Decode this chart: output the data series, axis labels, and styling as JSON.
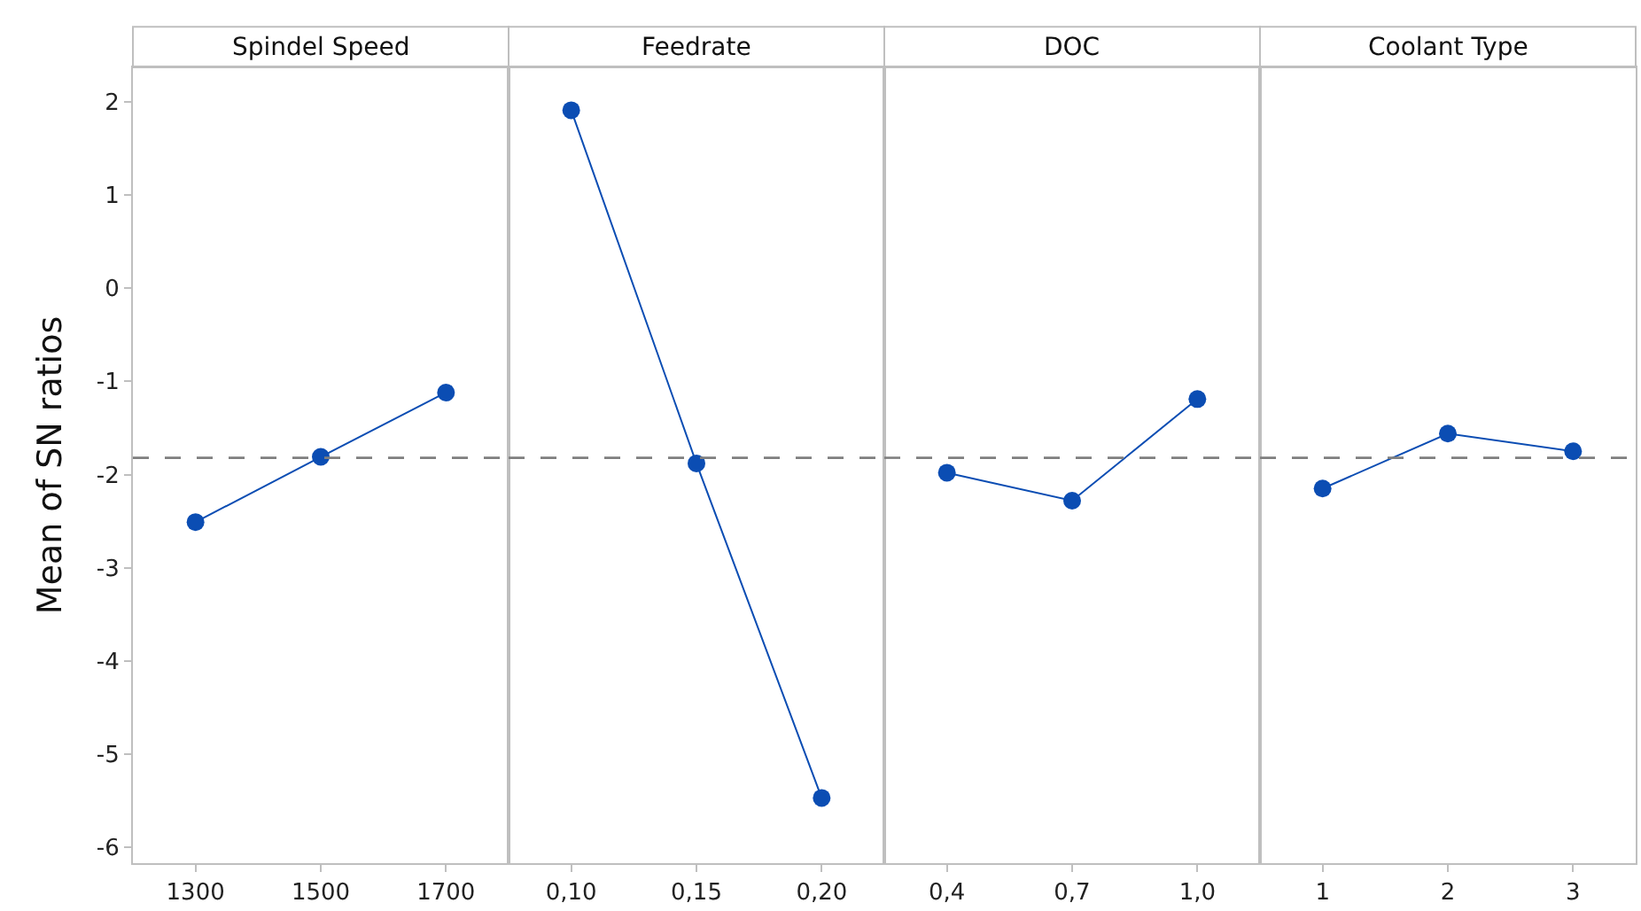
{
  "chart_data": [
    {
      "type": "line",
      "title": "Spindel Speed",
      "ylabel": "Mean of SN ratios",
      "categories": [
        "1300",
        "1500",
        "1700"
      ],
      "series": [
        {
          "color": "#0b4db3",
          "values": [
            -2.51,
            -1.81,
            -1.12
          ]
        }
      ],
      "ylim": [
        -6.17,
        2.37
      ],
      "yticks": [
        2,
        1,
        0,
        -1,
        -2,
        -3,
        -4,
        -5,
        -6
      ],
      "marker": "circle",
      "ref_lines": [
        {
          "axis": "y",
          "value": -1.82,
          "color": "#7f7f7f",
          "line_style": "dashed"
        }
      ]
    },
    {
      "type": "line",
      "title": "Feedrate",
      "categories": [
        "0,10",
        "0,15",
        "0,20"
      ],
      "series": [
        {
          "color": "#0b4db3",
          "values": [
            1.91,
            -1.88,
            -5.47
          ]
        }
      ],
      "ylim": [
        -6.17,
        2.37
      ],
      "tick_labels": "x",
      "marker": "circle",
      "ref_lines": [
        {
          "axis": "y",
          "value": -1.82,
          "color": "#7f7f7f",
          "line_style": "dashed"
        }
      ]
    },
    {
      "type": "line",
      "title": "DOC",
      "categories": [
        "0,4",
        "0,7",
        "1,0"
      ],
      "series": [
        {
          "color": "#0b4db3",
          "values": [
            -1.98,
            -2.28,
            -1.19
          ]
        }
      ],
      "ylim": [
        -6.17,
        2.37
      ],
      "tick_labels": "x",
      "marker": "circle",
      "ref_lines": [
        {
          "axis": "y",
          "value": -1.82,
          "color": "#7f7f7f",
          "line_style": "dashed"
        }
      ]
    },
    {
      "type": "line",
      "title": "Coolant Type",
      "categories": [
        "1",
        "2",
        "3"
      ],
      "series": [
        {
          "color": "#0b4db3",
          "values": [
            -2.15,
            -1.56,
            -1.75
          ]
        }
      ],
      "ylim": [
        -6.17,
        2.37
      ],
      "tick_labels": "x",
      "marker": "circle",
      "ref_lines": [
        {
          "axis": "y",
          "value": -1.82,
          "color": "#7f7f7f",
          "line_style": "dashed"
        }
      ]
    }
  ]
}
